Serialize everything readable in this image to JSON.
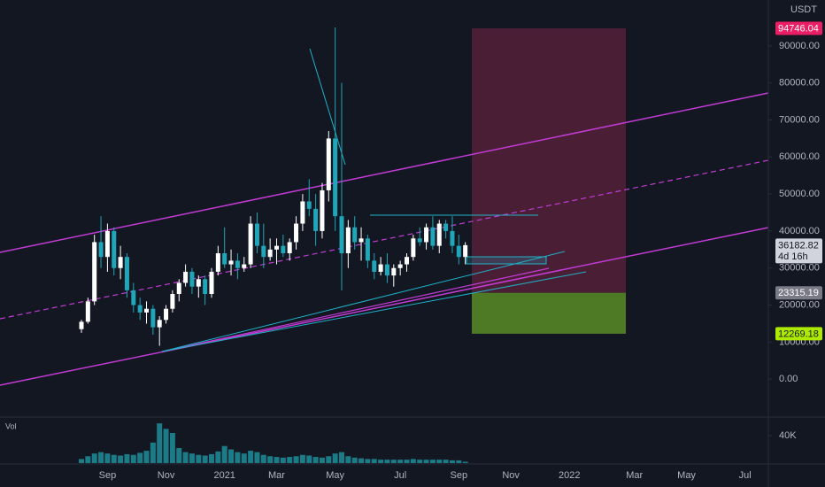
{
  "chart_data": {
    "type": "candlestick",
    "unit": "USDT",
    "countdown": "4d 16h",
    "up_color": "#ffffff",
    "down_color": "#1fa6b8",
    "categories": [
      null,
      null,
      null,
      null,
      "Sep",
      null,
      null,
      null,
      null,
      null,
      null,
      null,
      null,
      "Nov",
      null,
      null,
      null,
      null,
      null,
      null,
      null,
      null,
      "2021",
      null,
      null,
      null,
      null,
      null,
      null,
      null,
      "Mar",
      null,
      null,
      null,
      null,
      null,
      null,
      null,
      null,
      "May",
      null,
      null,
      null,
      null,
      null,
      null,
      null,
      null,
      null,
      "Jul",
      null,
      null,
      null,
      null,
      null,
      null,
      null,
      null,
      "Sep",
      null,
      null,
      null,
      null,
      null,
      null,
      null,
      "Nov",
      null,
      null,
      null,
      null,
      null,
      null,
      null,
      null,
      "2022",
      null,
      null,
      null,
      null,
      null,
      null,
      null,
      null,
      null,
      "Mar",
      null,
      null,
      null,
      null,
      null,
      null,
      null,
      "May",
      null,
      null,
      null,
      null,
      null,
      null,
      null,
      null,
      "Jul",
      null,
      null,
      null
    ],
    "open": [
      13500,
      15500,
      21000,
      37000,
      33000,
      40000,
      30000,
      33000,
      24000,
      20000,
      18000,
      19000,
      14000,
      16000,
      19000,
      23000,
      26000,
      29000,
      25000,
      27000,
      23000,
      29000,
      34000,
      31000,
      32000,
      30000,
      31000,
      42000,
      36000,
      33000,
      35000,
      36000,
      34000,
      37000,
      42000,
      48000,
      46000,
      40000,
      51000,
      65000,
      44000,
      34000,
      41000,
      37000,
      38000,
      32000,
      29000,
      31000,
      28000,
      30000,
      31000,
      33000,
      38000,
      37000,
      41000,
      36000,
      42000,
      40000,
      36000,
      33000,
      null,
      null,
      null,
      null,
      null,
      null,
      null,
      null,
      null,
      null,
      null,
      null,
      null,
      null,
      null,
      null,
      null,
      null,
      null,
      null,
      null,
      null,
      null,
      null,
      null,
      null,
      null,
      null,
      null,
      null,
      null,
      null,
      null,
      null,
      null,
      null,
      null,
      null,
      null,
      null,
      null,
      null,
      null,
      null,
      null,
      null
    ],
    "high": [
      16000,
      22000,
      39000,
      44000,
      42000,
      41000,
      36000,
      34000,
      26000,
      22000,
      21000,
      20000,
      17000,
      20000,
      24000,
      27000,
      31000,
      30000,
      28000,
      28000,
      30000,
      36000,
      41000,
      35000,
      34000,
      33000,
      44000,
      45000,
      42000,
      38000,
      38000,
      39000,
      38000,
      44000,
      50000,
      54000,
      50000,
      53000,
      67000,
      95000,
      80000,
      43000,
      44000,
      41000,
      39000,
      34000,
      33000,
      34000,
      31000,
      32000,
      34000,
      39000,
      41000,
      42000,
      44000,
      43000,
      43000,
      44000,
      39000,
      37000,
      null,
      null,
      null,
      null,
      null,
      null,
      null,
      null,
      null,
      null,
      null,
      null,
      null,
      null,
      null,
      null,
      null,
      null,
      null,
      null,
      null,
      null,
      null,
      null,
      null,
      null,
      null,
      null,
      null,
      null,
      null,
      null,
      null,
      null,
      null,
      null,
      null,
      null,
      null,
      null,
      null,
      null,
      null,
      null,
      null,
      null
    ],
    "low": [
      12500,
      15000,
      20000,
      30000,
      29000,
      28000,
      27000,
      22000,
      18000,
      16000,
      15000,
      12000,
      9000,
      15000,
      18000,
      21000,
      25000,
      23000,
      22000,
      20000,
      22000,
      28000,
      30000,
      28000,
      27000,
      29000,
      30000,
      34000,
      30000,
      32000,
      31000,
      33000,
      32000,
      35000,
      40000,
      44000,
      36000,
      38000,
      48000,
      40000,
      24000,
      30000,
      35000,
      32000,
      30000,
      27000,
      28000,
      26000,
      25000,
      28000,
      29000,
      32000,
      36000,
      35000,
      35000,
      34000,
      38000,
      34000,
      31000,
      31000,
      null,
      null,
      null,
      null,
      null,
      null,
      null,
      null,
      null,
      null,
      null,
      null,
      null,
      null,
      null,
      null,
      null,
      null,
      null,
      null,
      null,
      null,
      null,
      null,
      null,
      null,
      null,
      null,
      null,
      null,
      null,
      null,
      null,
      null,
      null,
      null,
      null,
      null,
      null,
      null,
      null,
      null,
      null,
      null,
      null,
      null
    ],
    "close": [
      15500,
      21000,
      37000,
      33000,
      40000,
      30000,
      33000,
      24000,
      20000,
      18000,
      19000,
      14000,
      16000,
      19000,
      23000,
      26000,
      29000,
      25000,
      27000,
      23000,
      29000,
      34000,
      31000,
      32000,
      30000,
      31000,
      42000,
      36000,
      33000,
      35000,
      36000,
      34000,
      37000,
      42000,
      48000,
      46000,
      40000,
      51000,
      65000,
      44000,
      34000,
      41000,
      37000,
      38000,
      32000,
      29000,
      31000,
      28000,
      30000,
      31000,
      33000,
      38000,
      37000,
      41000,
      36000,
      42000,
      40000,
      36000,
      33000,
      36182.82,
      null,
      null,
      null,
      null,
      null,
      null,
      null,
      null,
      null,
      null,
      null,
      null,
      null,
      null,
      null,
      null,
      null,
      null,
      null,
      null,
      null,
      null,
      null,
      null,
      null,
      null,
      null,
      null,
      null,
      null,
      null,
      null,
      null,
      null,
      null,
      null,
      null,
      null,
      null,
      null,
      null,
      null,
      null,
      null,
      null,
      null
    ],
    "ylim": [
      -10000,
      102400
    ],
    "yticks": [
      {
        "value": 0,
        "label": "0.00"
      },
      {
        "value": 10000,
        "label": "10000.00"
      },
      {
        "value": 20000,
        "label": "20000.00"
      },
      {
        "value": 30000,
        "label": "30000.00"
      },
      {
        "value": 40000,
        "label": "40000.00"
      },
      {
        "value": 50000,
        "label": "50000.00"
      },
      {
        "value": 60000,
        "label": "60000.00"
      },
      {
        "value": 70000,
        "label": "70000.00"
      },
      {
        "value": 80000,
        "label": "80000.00"
      },
      {
        "value": 90000,
        "label": "90000.00"
      }
    ],
    "grid": false,
    "last_price": 36182.82,
    "position": {
      "target": 94746.04,
      "entry": 23315.19,
      "stop": 12269.18,
      "target_color": "#e91e63",
      "entry_color": "#787b86",
      "stop_color": "#aeea00",
      "target_zone_color": "#4a1f36",
      "stop_zone_color": "#4e7a26"
    },
    "volume": {
      "label": "Vol",
      "color": "#1b7c88",
      "values": [
        6000,
        10000,
        14000,
        16000,
        14000,
        12000,
        11000,
        13000,
        12000,
        15000,
        18000,
        30000,
        58000,
        50000,
        44000,
        22000,
        16000,
        14000,
        12000,
        11000,
        13000,
        17000,
        25000,
        20000,
        16000,
        14000,
        18000,
        16000,
        12000,
        10000,
        9000,
        8000,
        9000,
        10000,
        12000,
        11000,
        9000,
        8000,
        10000,
        14000,
        16000,
        10000,
        8000,
        7000,
        6000,
        6000,
        5000,
        5000,
        5000,
        5000,
        5000,
        6000,
        5000,
        5000,
        5000,
        5000,
        5000,
        4000,
        4000,
        2000,
        null,
        null,
        null,
        null,
        null,
        null,
        null,
        null,
        null,
        null,
        null,
        null,
        null,
        null,
        null,
        null,
        null,
        null,
        null,
        null,
        null,
        null,
        null,
        null,
        null,
        null,
        null,
        null,
        null,
        null,
        null,
        null,
        null,
        null,
        null,
        null,
        null,
        null,
        null,
        null,
        null,
        null,
        null,
        null,
        null,
        null
      ],
      "ylim": [
        0,
        66000
      ],
      "yticks": [
        {
          "value": 40000,
          "label": "40K"
        }
      ]
    }
  }
}
